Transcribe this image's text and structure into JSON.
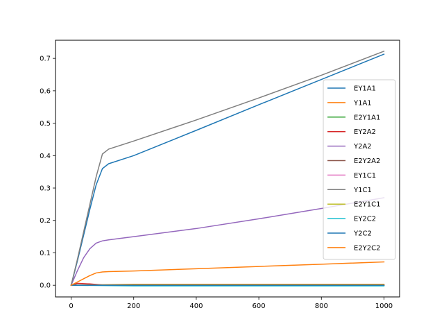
{
  "chart_data": {
    "type": "line",
    "title": "",
    "xlabel": "",
    "ylabel": "",
    "xlim": [
      -50,
      1050
    ],
    "ylim": [
      -0.036,
      0.756
    ],
    "xticks": [
      0,
      200,
      400,
      600,
      800,
      1000
    ],
    "xtick_labels": [
      "0",
      "200",
      "400",
      "600",
      "800",
      "1000"
    ],
    "yticks": [
      0.0,
      0.1,
      0.2,
      0.3,
      0.4,
      0.5,
      0.6,
      0.7
    ],
    "ytick_labels": [
      "0.0",
      "0.1",
      "0.2",
      "0.3",
      "0.4",
      "0.5",
      "0.6",
      "0.7"
    ],
    "grid": false,
    "legend_position": "right",
    "series": [
      {
        "name": "EY1A1",
        "color": "#1f77b4",
        "x": [
          0,
          20,
          40,
          60,
          80,
          100,
          120,
          200,
          400,
          600,
          800,
          1000
        ],
        "y": [
          0,
          0.075,
          0.155,
          0.235,
          0.31,
          0.36,
          0.375,
          0.4,
          0.478,
          0.557,
          0.635,
          0.713
        ]
      },
      {
        "name": "Y1A1",
        "color": "#ff7f0e",
        "x": [
          0,
          200,
          400,
          600,
          800,
          1000
        ],
        "y": [
          0,
          0.003,
          0.003,
          0.003,
          0.003,
          0.003
        ]
      },
      {
        "name": "E2Y1A1",
        "color": "#2ca02c",
        "x": [
          0,
          200,
          400,
          600,
          800,
          1000
        ],
        "y": [
          0,
          0,
          0,
          0,
          0,
          0
        ]
      },
      {
        "name": "EY2A2",
        "color": "#d62728",
        "x": [
          0,
          20,
          60,
          100,
          200,
          400,
          600,
          800,
          1000
        ],
        "y": [
          0,
          0.006,
          0.004,
          0.001,
          0.001,
          0.001,
          0.001,
          0.001,
          0.001
        ]
      },
      {
        "name": "Y2A2",
        "color": "#9467bd",
        "x": [
          0,
          20,
          40,
          60,
          80,
          100,
          120,
          200,
          400,
          600,
          800,
          1000
        ],
        "y": [
          0,
          0.045,
          0.085,
          0.113,
          0.13,
          0.137,
          0.14,
          0.15,
          0.175,
          0.205,
          0.237,
          0.27
        ]
      },
      {
        "name": "E2Y2A2",
        "color": "#8c564b",
        "x": [
          0,
          200,
          400,
          600,
          800,
          1000
        ],
        "y": [
          0,
          0,
          0,
          0,
          0,
          0
        ]
      },
      {
        "name": "EY1C1",
        "color": "#e377c2",
        "x": [
          0,
          200,
          400,
          600,
          800,
          1000
        ],
        "y": [
          0,
          0,
          0,
          0,
          0,
          0
        ]
      },
      {
        "name": "Y1C1",
        "color": "#7f7f7f",
        "x": [
          0,
          20,
          40,
          60,
          80,
          100,
          120,
          200,
          400,
          600,
          800,
          1000
        ],
        "y": [
          0,
          0.08,
          0.165,
          0.25,
          0.335,
          0.405,
          0.42,
          0.445,
          0.51,
          0.578,
          0.648,
          0.722
        ]
      },
      {
        "name": "E2Y1C1",
        "color": "#bcbd22",
        "x": [
          0,
          200,
          400,
          600,
          800,
          1000
        ],
        "y": [
          0,
          0.001,
          0.001,
          0.001,
          0.001,
          0.001
        ]
      },
      {
        "name": "EY2C2",
        "color": "#17becf",
        "x": [
          0,
          200,
          400,
          600,
          800,
          1000
        ],
        "y": [
          0,
          -0.002,
          -0.002,
          -0.002,
          -0.002,
          -0.002
        ]
      },
      {
        "name": "Y2C2",
        "color": "#1f77b4",
        "x": [
          0,
          200,
          400,
          600,
          800,
          1000
        ],
        "y": [
          0,
          0,
          0,
          0,
          0,
          0
        ]
      },
      {
        "name": "E2Y2C2",
        "color": "#ff7f0e",
        "x": [
          0,
          20,
          40,
          60,
          80,
          100,
          120,
          200,
          400,
          600,
          800,
          1000
        ],
        "y": [
          0,
          0.01,
          0.02,
          0.03,
          0.038,
          0.041,
          0.042,
          0.044,
          0.051,
          0.058,
          0.065,
          0.072
        ]
      }
    ]
  }
}
